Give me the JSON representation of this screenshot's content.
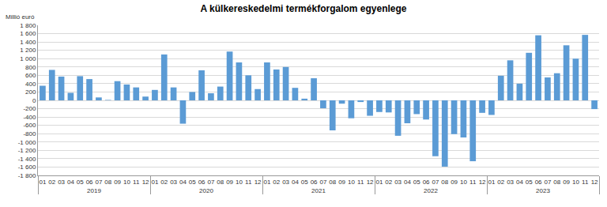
{
  "chart_data": {
    "type": "bar",
    "title": "A külkereskedelmi termékforgalom egyenlege",
    "ylabel": "Millió euró",
    "categories": [
      "01",
      "02",
      "03",
      "04",
      "05",
      "06",
      "07",
      "08",
      "09",
      "10",
      "11",
      "12",
      "01",
      "02",
      "03",
      "04",
      "05",
      "06",
      "07",
      "08",
      "09",
      "10",
      "11",
      "12",
      "01",
      "02",
      "03",
      "04",
      "05",
      "06",
      "07",
      "08",
      "09",
      "10",
      "11",
      "12",
      "01",
      "02",
      "03",
      "04",
      "05",
      "06",
      "07",
      "08",
      "09",
      "10",
      "11",
      "12",
      "01",
      "02",
      "03",
      "04",
      "05",
      "06",
      "07",
      "08",
      "09",
      "10",
      "11",
      "12"
    ],
    "x_groups": [
      "2019",
      "2019",
      "2019",
      "2019",
      "2019",
      "2019",
      "2019",
      "2019",
      "2019",
      "2019",
      "2019",
      "2019",
      "2020",
      "2020",
      "2020",
      "2020",
      "2020",
      "2020",
      "2020",
      "2020",
      "2020",
      "2020",
      "2020",
      "2020",
      "2021",
      "2021",
      "2021",
      "2021",
      "2021",
      "2021",
      "2021",
      "2021",
      "2021",
      "2021",
      "2021",
      "2021",
      "2022",
      "2022",
      "2022",
      "2022",
      "2022",
      "2022",
      "2022",
      "2022",
      "2022",
      "2022",
      "2022",
      "2022",
      "2023",
      "2023",
      "2023",
      "2023",
      "2023",
      "2023",
      "2023",
      "2023",
      "2023",
      "2023",
      "2023",
      "2023"
    ],
    "values": [
      350,
      730,
      570,
      180,
      580,
      510,
      70,
      10,
      460,
      380,
      310,
      90,
      250,
      1100,
      310,
      -560,
      200,
      720,
      170,
      330,
      1170,
      910,
      600,
      270,
      910,
      740,
      800,
      300,
      40,
      530,
      -190,
      -720,
      -80,
      -430,
      -40,
      -370,
      -280,
      -290,
      -850,
      -550,
      -330,
      -460,
      -1340,
      -1590,
      -810,
      -890,
      -1460,
      -300,
      -350,
      590,
      960,
      400,
      1140,
      1560,
      550,
      650,
      1320,
      1000,
      1570,
      -210
    ],
    "color": "#5b9bd5",
    "ylim": [
      -1800,
      1800
    ],
    "yticks": [
      {
        "value": -1800,
        "label": "-1 800"
      },
      {
        "value": -1600,
        "label": "-1 600"
      },
      {
        "value": -1400,
        "label": "-1 400"
      },
      {
        "value": -1200,
        "label": "-1 200"
      },
      {
        "value": -1000,
        "label": "-1 000"
      },
      -800,
      -600,
      -400,
      -200,
      0,
      200,
      400,
      600,
      800,
      {
        "value": 1000,
        "label": "1 000"
      },
      {
        "value": 1200,
        "label": "1 200"
      },
      {
        "value": 1400,
        "label": "1 400"
      },
      {
        "value": 1600,
        "label": "1 600"
      },
      {
        "value": 1800,
        "label": "1 800"
      }
    ],
    "grid": true
  }
}
